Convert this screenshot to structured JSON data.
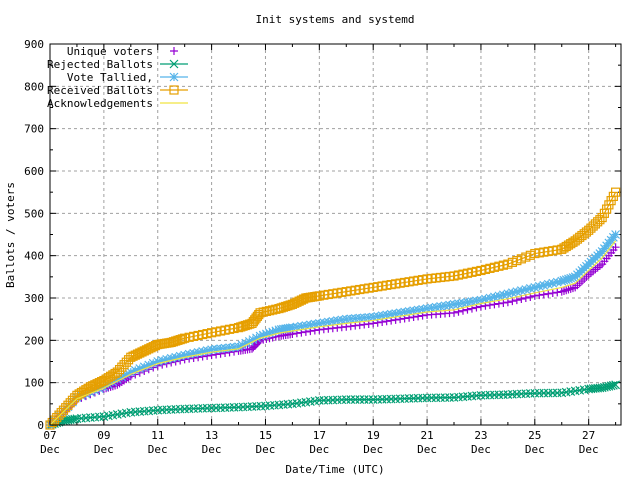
{
  "chart_data": {
    "type": "line",
    "title": "Init systems and systemd",
    "xlabel": "Date/Time (UTC)",
    "ylabel": "Ballots / voters",
    "xlim": [
      7,
      28.2
    ],
    "ylim": [
      0,
      900
    ],
    "grid": true,
    "legend_position": "top-left",
    "x_ticks": [
      {
        "day": 7,
        "label": "07",
        "sub": "Dec"
      },
      {
        "day": 9,
        "label": "09",
        "sub": "Dec"
      },
      {
        "day": 11,
        "label": "11",
        "sub": "Dec"
      },
      {
        "day": 13,
        "label": "13",
        "sub": "Dec"
      },
      {
        "day": 15,
        "label": "15",
        "sub": "Dec"
      },
      {
        "day": 17,
        "label": "17",
        "sub": "Dec"
      },
      {
        "day": 19,
        "label": "19",
        "sub": "Dec"
      },
      {
        "day": 21,
        "label": "21",
        "sub": "Dec"
      },
      {
        "day": 23,
        "label": "23",
        "sub": "Dec"
      },
      {
        "day": 25,
        "label": "25",
        "sub": "Dec"
      },
      {
        "day": 27,
        "label": "27",
        "sub": "Dec"
      }
    ],
    "y_ticks": [
      "0",
      "100",
      "200",
      "300",
      "400",
      "500",
      "600",
      "700",
      "800",
      "900"
    ],
    "series": [
      {
        "name": "Unique voters",
        "color": "#9400d3",
        "marker": "plus",
        "line": false,
        "x": [
          7,
          7.5,
          8,
          9,
          9.5,
          10,
          11,
          12,
          13,
          14,
          14.5,
          14.8,
          15.5,
          16,
          17,
          18,
          19,
          20,
          21,
          22,
          23,
          24,
          25,
          26,
          26.5,
          27,
          27.5,
          28
        ],
        "y": [
          0,
          30,
          60,
          85,
          95,
          115,
          140,
          155,
          165,
          175,
          180,
          200,
          210,
          215,
          225,
          232,
          240,
          250,
          260,
          265,
          280,
          290,
          305,
          315,
          325,
          355,
          380,
          420
        ]
      },
      {
        "name": "Rejected Ballots",
        "color": "#009e73",
        "marker": "cross",
        "line": true,
        "x": [
          7,
          7.5,
          8,
          9,
          10,
          11,
          12,
          13,
          14,
          15,
          16,
          17,
          18,
          19,
          20,
          21,
          22,
          23,
          24,
          25,
          26,
          27,
          27.5,
          28
        ],
        "y": [
          0,
          10,
          15,
          20,
          30,
          35,
          38,
          40,
          42,
          45,
          50,
          58,
          60,
          60,
          62,
          64,
          65,
          70,
          72,
          75,
          76,
          85,
          88,
          95
        ]
      },
      {
        "name": "Vote Tallied,",
        "color": "#56b4e9",
        "marker": "star",
        "line": true,
        "x": [
          7,
          8,
          9,
          10,
          11,
          12,
          13,
          14,
          14.8,
          15.5,
          16,
          17,
          18,
          19,
          20,
          21,
          22,
          23,
          24,
          25,
          26,
          26.5,
          27,
          27.5,
          28
        ],
        "y": [
          0,
          65,
          90,
          125,
          150,
          165,
          178,
          185,
          210,
          225,
          230,
          240,
          250,
          255,
          265,
          275,
          285,
          295,
          310,
          325,
          340,
          350,
          380,
          410,
          450
        ]
      },
      {
        "name": "Received Ballots",
        "color": "#e69f00",
        "marker": "square",
        "line": true,
        "x": [
          7,
          7.5,
          8,
          8.5,
          9,
          9.5,
          10,
          10.5,
          11,
          11.5,
          12,
          13,
          14,
          14.5,
          14.8,
          15.5,
          16,
          16.5,
          17,
          18,
          19,
          20,
          21,
          22,
          23,
          24,
          25,
          26,
          26.5,
          27,
          27.5,
          28
        ],
        "y": [
          0,
          35,
          70,
          90,
          105,
          125,
          160,
          175,
          190,
          195,
          205,
          218,
          230,
          240,
          265,
          275,
          285,
          300,
          305,
          315,
          325,
          335,
          345,
          352,
          365,
          380,
          405,
          415,
          435,
          460,
          490,
          550
        ]
      },
      {
        "name": "Acknowledgements",
        "color": "#f0e442",
        "marker": "none",
        "line": true,
        "x": [
          7,
          8,
          9,
          10,
          11,
          12,
          13,
          14,
          14.8,
          15.5,
          16,
          17,
          18,
          19,
          20,
          21,
          22,
          23,
          24,
          25,
          26,
          26.5,
          27,
          27.5,
          28
        ],
        "y": [
          0,
          62,
          87,
          120,
          145,
          160,
          172,
          180,
          205,
          217,
          222,
          232,
          240,
          247,
          257,
          267,
          272,
          287,
          298,
          312,
          325,
          335,
          365,
          395,
          435
        ]
      }
    ]
  }
}
